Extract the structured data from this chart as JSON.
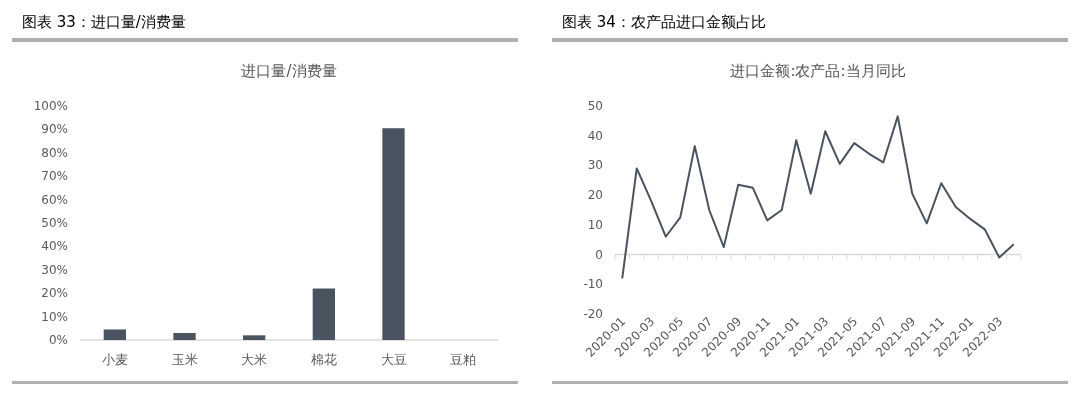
{
  "chart_data": [
    {
      "type": "bar",
      "title": "图表 33：进口量/消费量",
      "subtitle": "进口量/消费量",
      "categories": [
        "小麦",
        "玉米",
        "大米",
        "棉花",
        "大豆",
        "豆粕"
      ],
      "values": [
        4.5,
        3,
        2,
        22,
        90.5,
        0
      ],
      "color": "#4a5360",
      "ylim": [
        0,
        100
      ],
      "yticks": [
        {
          "value": 0,
          "label": "0%"
        },
        {
          "value": 10,
          "label": "10%"
        },
        {
          "value": 20,
          "label": "20%"
        },
        {
          "value": 30,
          "label": "30%"
        },
        {
          "value": 40,
          "label": "40%"
        },
        {
          "value": 50,
          "label": "50%"
        },
        {
          "value": 60,
          "label": "60%"
        },
        {
          "value": 70,
          "label": "70%"
        },
        {
          "value": 80,
          "label": "80%"
        },
        {
          "value": 90,
          "label": "90%"
        },
        {
          "value": 100,
          "label": "100%"
        }
      ]
    },
    {
      "type": "line",
      "title": "图表 34：农产品进口金额占比",
      "subtitle": "进口金额:农产品:当月同比",
      "categories": [
        "2020-01",
        null,
        "2020-03",
        null,
        "2020-05",
        null,
        "2020-07",
        null,
        "2020-09",
        null,
        "2020-11",
        null,
        "2021-01",
        null,
        "2021-03",
        null,
        "2021-05",
        null,
        "2021-07",
        null,
        "2021-09",
        null,
        "2021-11",
        null,
        "2022-01",
        null,
        "2022-03",
        null
      ],
      "values": [
        -8,
        29,
        18,
        6,
        12.5,
        36.5,
        15,
        2.5,
        23.5,
        22.5,
        11.5,
        15,
        38.5,
        20.5,
        41.5,
        30.5,
        37.5,
        34,
        31,
        46.5,
        20.5,
        10.5,
        24,
        16,
        12,
        8.5,
        -1,
        3.5
      ],
      "color": "#4a5360",
      "ylim": [
        -20,
        50
      ],
      "yticks": [
        -20,
        -10,
        0,
        10,
        20,
        30,
        40,
        50
      ]
    }
  ]
}
